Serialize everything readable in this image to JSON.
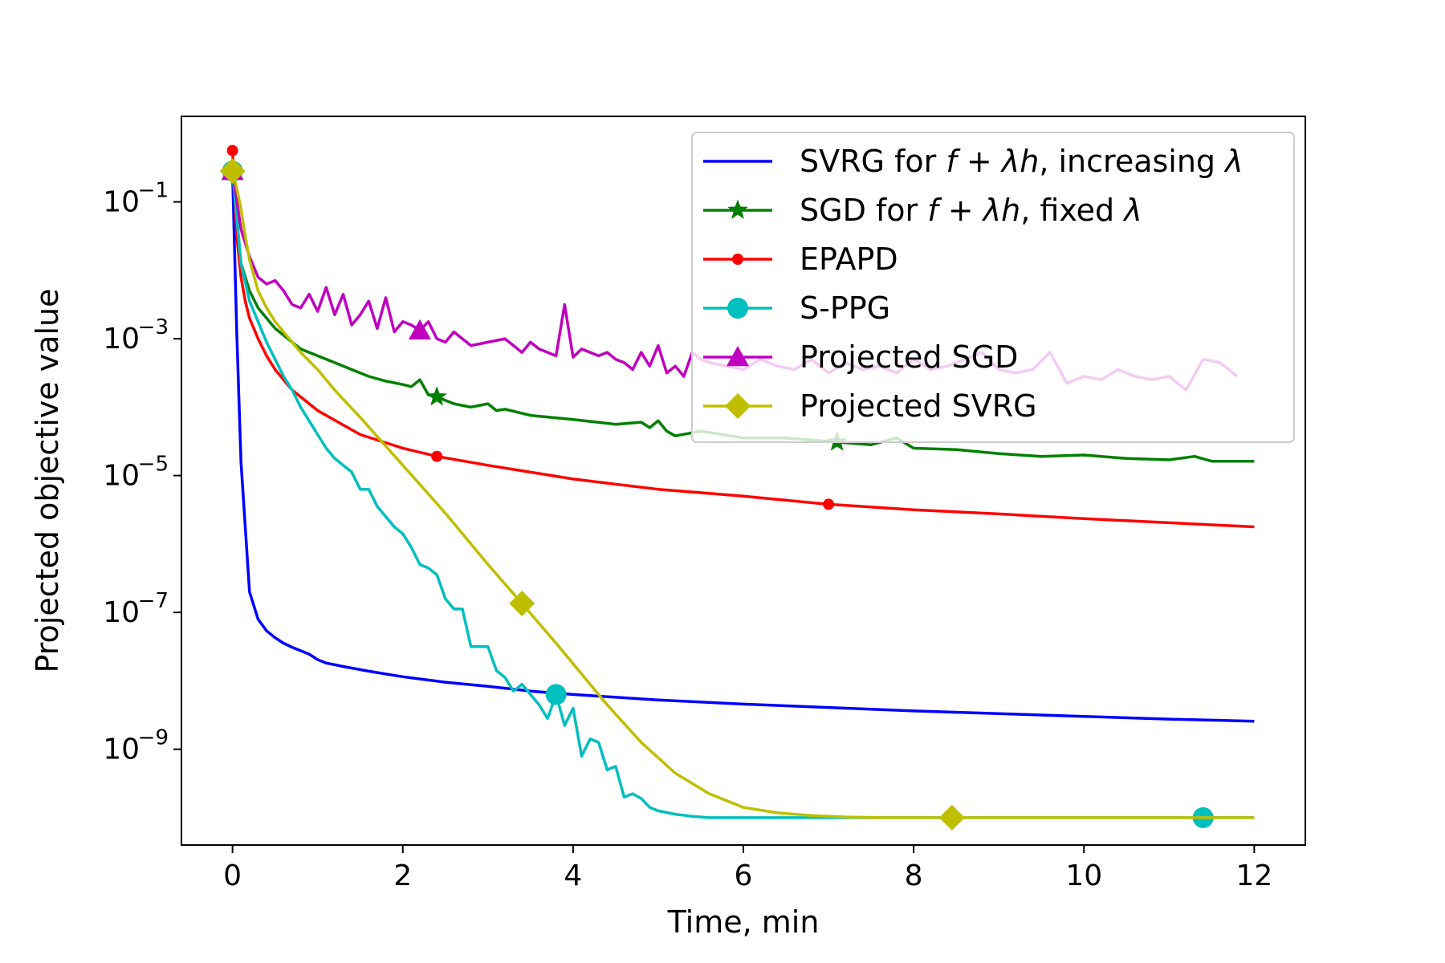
{
  "chart_data": {
    "type": "line",
    "title": "",
    "xlabel": "Time, min",
    "ylabel": "Projected objective value",
    "yscale": "log",
    "xlim": [
      -0.6,
      12.6
    ],
    "ylim_log10": [
      -10.4,
      0.25
    ],
    "legend_position": "top-right",
    "xticks": [
      {
        "value": 0,
        "label": "0"
      },
      {
        "value": 2,
        "label": "2"
      },
      {
        "value": 4,
        "label": "4"
      },
      {
        "value": 6,
        "label": "6"
      },
      {
        "value": 8,
        "label": "8"
      },
      {
        "value": 10,
        "label": "10"
      },
      {
        "value": 12,
        "label": "12"
      }
    ],
    "yticks": [
      {
        "value": -1,
        "base": "10",
        "exp": "−1"
      },
      {
        "value": -3,
        "base": "10",
        "exp": "−3"
      },
      {
        "value": -5,
        "base": "10",
        "exp": "−5"
      },
      {
        "value": -7,
        "base": "10",
        "exp": "−7"
      },
      {
        "value": -9,
        "base": "10",
        "exp": "−9"
      }
    ],
    "series": [
      {
        "key": "svrg-increasing",
        "name_parts": [
          [
            "SVRG for ",
            "n"
          ],
          [
            "f",
            "i"
          ],
          [
            " + ",
            "n"
          ],
          [
            "λh",
            "i"
          ],
          [
            ", increasing ",
            "n"
          ],
          [
            "λ",
            "i"
          ]
        ],
        "color": "#0000ff",
        "marker": "none",
        "x": [
          0,
          0.05,
          0.1,
          0.2,
          0.3,
          0.4,
          0.5,
          0.6,
          0.7,
          0.8,
          0.9,
          1.0,
          1.1,
          1.3,
          1.6,
          2.0,
          2.5,
          3.0,
          3.5,
          4.0,
          5.0,
          6.0,
          7.0,
          8.0,
          9.0,
          10.0,
          11.0,
          12.0
        ],
        "y": [
          -0.55,
          -2.9,
          -4.8,
          -6.7,
          -7.1,
          -7.27,
          -7.37,
          -7.45,
          -7.51,
          -7.56,
          -7.61,
          -7.69,
          -7.74,
          -7.79,
          -7.86,
          -7.94,
          -8.02,
          -8.08,
          -8.15,
          -8.2,
          -8.28,
          -8.34,
          -8.39,
          -8.44,
          -8.48,
          -8.52,
          -8.56,
          -8.59
        ],
        "marker_x": []
      },
      {
        "key": "sgd-fixed",
        "name_parts": [
          [
            "SGD for ",
            "n"
          ],
          [
            "f",
            "i"
          ],
          [
            " + ",
            "n"
          ],
          [
            "λh",
            "i"
          ],
          [
            ", fixed ",
            "n"
          ],
          [
            "λ",
            "i"
          ]
        ],
        "color": "#008000",
        "marker": "star",
        "x": [
          0,
          0.1,
          0.2,
          0.3,
          0.4,
          0.5,
          0.6,
          0.7,
          0.8,
          0.9,
          1.0,
          1.2,
          1.4,
          1.6,
          1.8,
          2.0,
          2.1,
          2.2,
          2.3,
          2.4,
          2.6,
          2.8,
          3.0,
          3.1,
          3.2,
          3.5,
          4.0,
          4.5,
          4.8,
          4.9,
          5.0,
          5.1,
          5.2,
          5.5,
          6.0,
          6.5,
          7.0,
          7.5,
          7.8,
          8.0,
          8.5,
          9.0,
          9.5,
          10.0,
          10.5,
          11.0,
          11.3,
          11.5,
          12.0
        ],
        "y": [
          -0.55,
          -1.9,
          -2.3,
          -2.55,
          -2.7,
          -2.85,
          -2.95,
          -3.05,
          -3.15,
          -3.2,
          -3.25,
          -3.35,
          -3.45,
          -3.55,
          -3.62,
          -3.67,
          -3.7,
          -3.6,
          -3.82,
          -3.85,
          -3.95,
          -4.0,
          -3.95,
          -4.05,
          -4.03,
          -4.12,
          -4.18,
          -4.25,
          -4.22,
          -4.3,
          -4.2,
          -4.35,
          -4.42,
          -4.35,
          -4.45,
          -4.45,
          -4.5,
          -4.55,
          -4.45,
          -4.6,
          -4.62,
          -4.68,
          -4.72,
          -4.7,
          -4.75,
          -4.77,
          -4.72,
          -4.79,
          -4.79
        ],
        "marker_x": [
          0,
          2.4,
          7.1
        ]
      },
      {
        "key": "epapd",
        "name_parts": [
          [
            "EPAPD",
            "n"
          ]
        ],
        "color": "#ff0000",
        "marker": "dot",
        "x": [
          0,
          0.05,
          0.1,
          0.15,
          0.2,
          0.3,
          0.4,
          0.5,
          0.7,
          1.0,
          1.5,
          2.0,
          2.4,
          3.0,
          4.0,
          5.0,
          6.0,
          7.0,
          8.0,
          9.0,
          10.0,
          11.0,
          12.0
        ],
        "y": [
          -0.25,
          -1.5,
          -2.1,
          -2.45,
          -2.7,
          -3.0,
          -3.25,
          -3.45,
          -3.75,
          -4.05,
          -4.4,
          -4.6,
          -4.72,
          -4.85,
          -5.05,
          -5.2,
          -5.3,
          -5.42,
          -5.5,
          -5.56,
          -5.63,
          -5.69,
          -5.75
        ],
        "marker_x": [
          0,
          2.4,
          7.0
        ]
      },
      {
        "key": "s-ppg",
        "name_parts": [
          [
            "S-PPG",
            "n"
          ]
        ],
        "color": "#00bfbf",
        "marker": "circle",
        "x": [
          0,
          0.1,
          0.2,
          0.3,
          0.4,
          0.5,
          0.6,
          0.7,
          0.8,
          0.9,
          1.0,
          1.1,
          1.2,
          1.3,
          1.4,
          1.5,
          1.6,
          1.7,
          1.8,
          1.9,
          2.0,
          2.1,
          2.2,
          2.3,
          2.4,
          2.5,
          2.6,
          2.7,
          2.8,
          2.9,
          3.0,
          3.1,
          3.2,
          3.3,
          3.4,
          3.5,
          3.6,
          3.7,
          3.8,
          3.9,
          4.0,
          4.1,
          4.2,
          4.3,
          4.4,
          4.5,
          4.6,
          4.7,
          4.8,
          4.9,
          5.0,
          5.2,
          5.4,
          5.6,
          5.8,
          6.0,
          6.5,
          7.0,
          8.0,
          9.0,
          10.0,
          11.0,
          11.5,
          12.0
        ],
        "y": [
          -0.55,
          -1.9,
          -2.45,
          -2.75,
          -3.05,
          -3.3,
          -3.55,
          -3.75,
          -4.0,
          -4.2,
          -4.4,
          -4.6,
          -4.75,
          -4.85,
          -4.95,
          -5.2,
          -5.2,
          -5.45,
          -5.6,
          -5.75,
          -5.85,
          -6.05,
          -6.3,
          -6.35,
          -6.45,
          -6.8,
          -6.95,
          -6.95,
          -7.5,
          -7.5,
          -7.5,
          -7.85,
          -7.95,
          -8.15,
          -8.05,
          -8.2,
          -8.35,
          -8.55,
          -8.2,
          -8.65,
          -8.4,
          -9.1,
          -8.85,
          -8.9,
          -9.3,
          -9.25,
          -9.7,
          -9.65,
          -9.72,
          -9.85,
          -9.9,
          -9.95,
          -9.98,
          -10.0,
          -10.0,
          -10.0,
          -10.0,
          -10.0,
          -10.0,
          -10.0,
          -10.0,
          -10.0,
          -10.0,
          -10.0
        ],
        "marker_x": [
          0,
          3.8,
          11.4
        ]
      },
      {
        "key": "projected-sgd",
        "name_parts": [
          [
            "Projected SGD",
            "n"
          ]
        ],
        "color": "#bf00bf",
        "marker": "triangle",
        "x": [
          0,
          0.1,
          0.2,
          0.3,
          0.4,
          0.5,
          0.6,
          0.7,
          0.8,
          0.9,
          1.0,
          1.1,
          1.2,
          1.3,
          1.4,
          1.5,
          1.6,
          1.7,
          1.8,
          1.9,
          2.0,
          2.1,
          2.2,
          2.3,
          2.4,
          2.5,
          2.6,
          2.8,
          3.0,
          3.2,
          3.4,
          3.5,
          3.6,
          3.7,
          3.8,
          3.9,
          4.0,
          4.1,
          4.2,
          4.3,
          4.4,
          4.5,
          4.6,
          4.7,
          4.8,
          4.9,
          5.0,
          5.1,
          5.2,
          5.3,
          5.4,
          5.5,
          5.6,
          5.8,
          6.0,
          6.2,
          6.4,
          6.6,
          6.8,
          7.0,
          7.2,
          7.4,
          7.6,
          7.8,
          8.0,
          8.2,
          8.4,
          8.6,
          8.8,
          9.0,
          9.2,
          9.4,
          9.6,
          9.8,
          10.0,
          10.2,
          10.4,
          10.6,
          10.8,
          11.0,
          11.2,
          11.4,
          11.6,
          11.8
        ],
        "y": [
          -0.55,
          -1.4,
          -1.8,
          -2.1,
          -2.2,
          -2.15,
          -2.3,
          -2.5,
          -2.55,
          -2.35,
          -2.6,
          -2.25,
          -2.65,
          -2.35,
          -2.8,
          -2.65,
          -2.45,
          -2.85,
          -2.4,
          -2.9,
          -2.75,
          -2.8,
          -2.88,
          -2.75,
          -3.0,
          -3.05,
          -2.9,
          -3.1,
          -3.05,
          -3.0,
          -3.2,
          -3.05,
          -3.15,
          -3.2,
          -3.25,
          -2.5,
          -3.27,
          -3.15,
          -3.2,
          -3.25,
          -3.2,
          -3.3,
          -3.35,
          -3.45,
          -3.2,
          -3.4,
          -3.1,
          -3.5,
          -3.4,
          -3.55,
          -3.2,
          -3.3,
          -3.35,
          -3.4,
          -3.45,
          -3.3,
          -3.4,
          -3.45,
          -3.3,
          -3.5,
          -3.35,
          -3.45,
          -3.4,
          -3.5,
          -3.3,
          -3.45,
          -3.4,
          -3.3,
          -3.2,
          -3.45,
          -3.5,
          -3.45,
          -3.2,
          -3.65,
          -3.55,
          -3.6,
          -3.45,
          -3.55,
          -3.6,
          -3.55,
          -3.75,
          -3.3,
          -3.35,
          -3.55
        ],
        "marker_x": [
          0,
          2.2
        ]
      },
      {
        "key": "projected-svrg",
        "name_parts": [
          [
            "Projected SVRG",
            "n"
          ]
        ],
        "color": "#bfbf00",
        "marker": "diamond",
        "x": [
          0,
          0.05,
          0.1,
          0.15,
          0.2,
          0.3,
          0.4,
          0.5,
          0.6,
          0.7,
          0.8,
          1.0,
          1.2,
          1.5,
          2.0,
          2.5,
          3.0,
          3.4,
          3.8,
          4.0,
          4.4,
          4.8,
          5.2,
          5.6,
          6.0,
          6.4,
          6.8,
          7.2,
          7.6,
          8.0,
          8.45,
          9.0,
          10.0,
          11.0,
          12.0
        ],
        "y": [
          -0.55,
          -0.8,
          -1.1,
          -1.5,
          -1.85,
          -2.3,
          -2.55,
          -2.75,
          -2.9,
          -3.05,
          -3.2,
          -3.45,
          -3.75,
          -4.15,
          -4.85,
          -5.55,
          -6.3,
          -6.87,
          -7.45,
          -7.75,
          -8.35,
          -8.9,
          -9.35,
          -9.65,
          -9.85,
          -9.93,
          -9.97,
          -9.99,
          -10.0,
          -10.0,
          -10.0,
          -10.0,
          -10.0,
          -10.0,
          -10.0
        ],
        "marker_x": [
          0,
          3.4,
          8.45
        ]
      }
    ]
  }
}
